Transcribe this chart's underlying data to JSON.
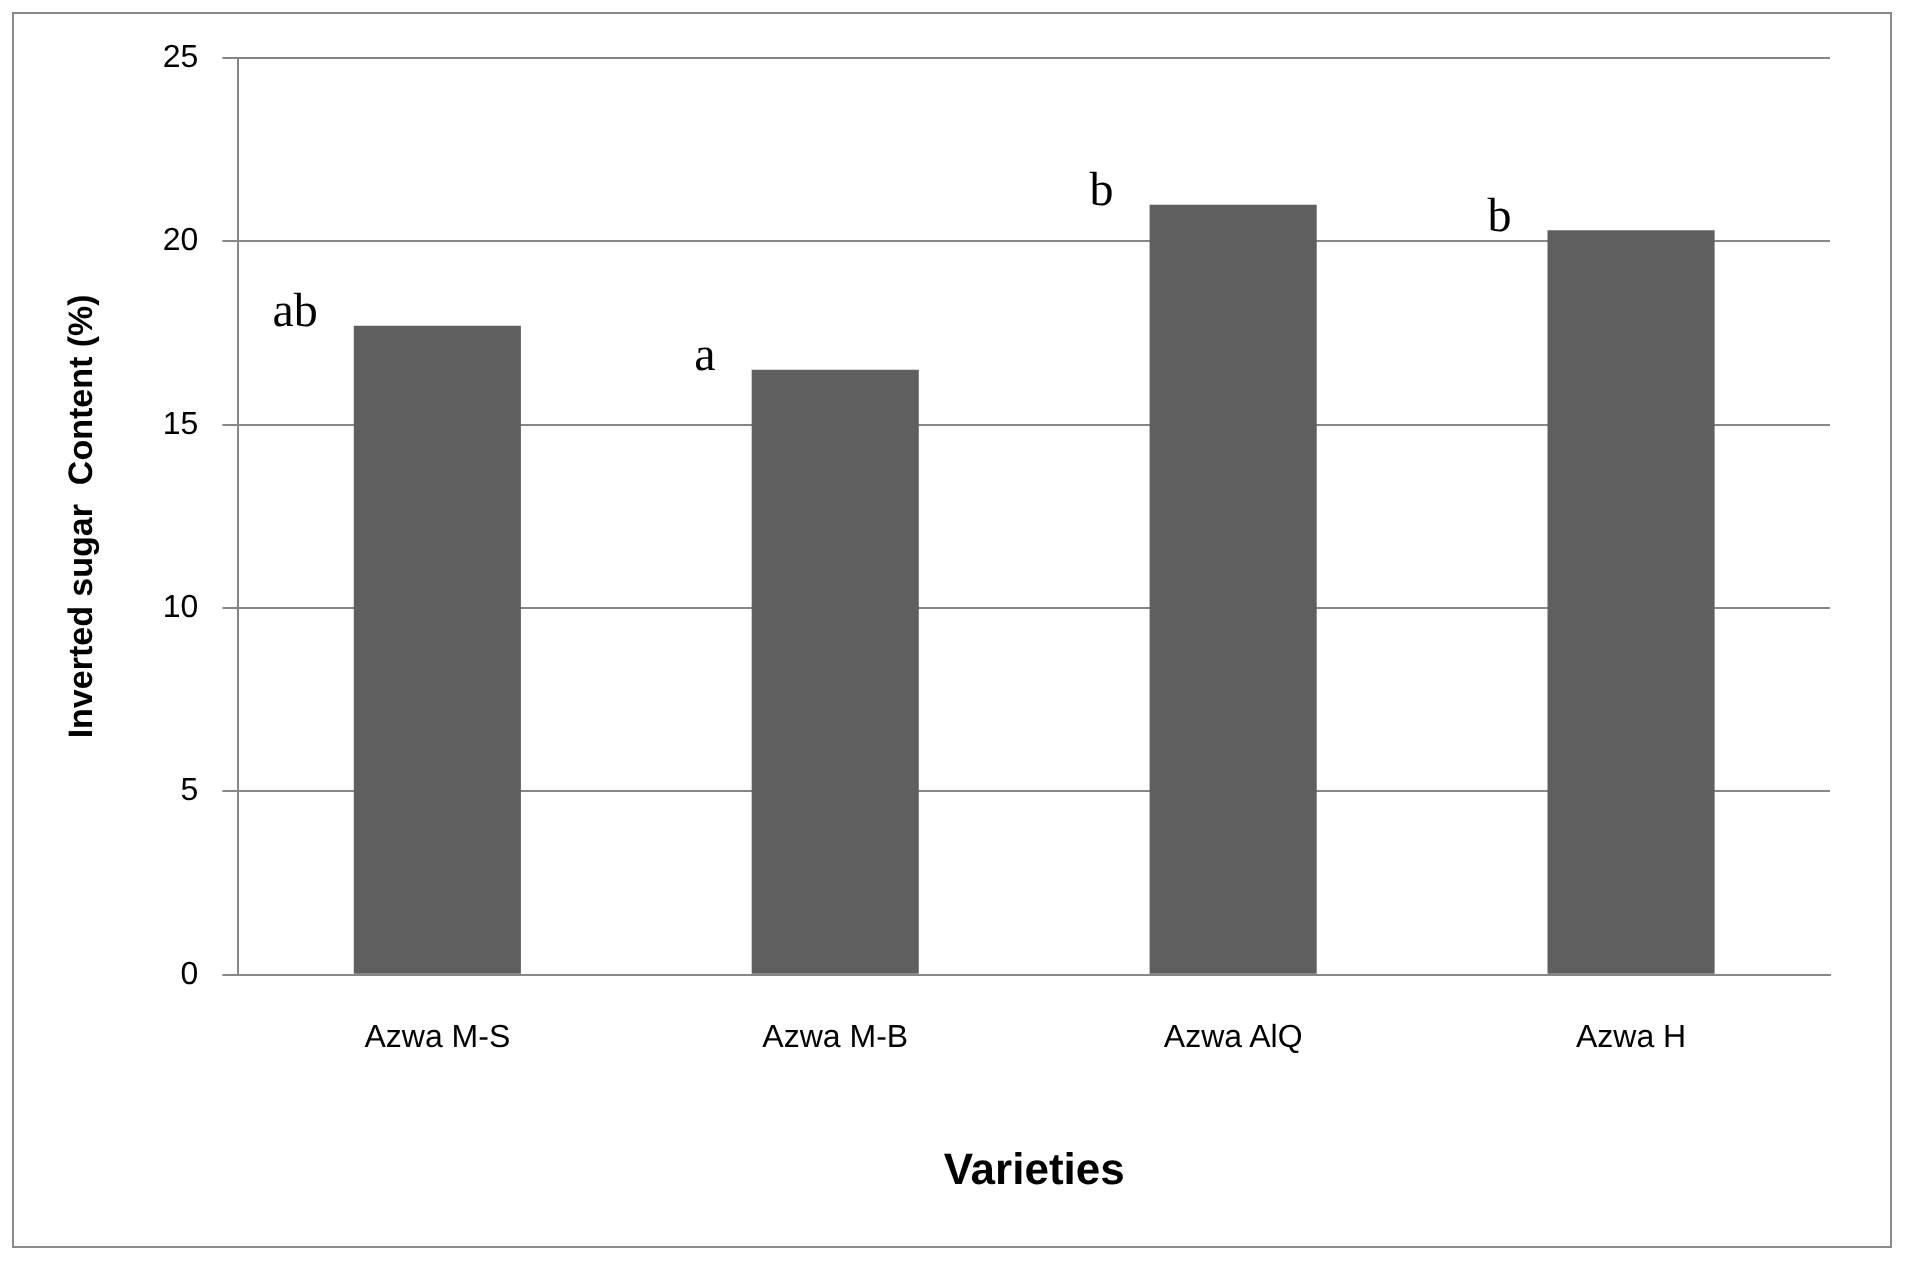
{
  "chart_data": {
    "type": "bar",
    "xlabel": "Varieties",
    "ylabel": "Inverted sugar  Content (%)",
    "categories": [
      "Azwa M-S",
      "Azwa M-B",
      "Azwa AlQ",
      "Azwa H"
    ],
    "values": [
      17.7,
      16.5,
      21,
      20.3
    ],
    "color": "#5f5f5f",
    "ylim": [
      0,
      25
    ],
    "yticks": [
      0,
      5,
      10,
      15,
      20,
      25
    ],
    "grid": "y",
    "legend": false,
    "annotations": [
      {
        "text": "ab",
        "x": "Azwa M-S",
        "y": 17.7
      },
      {
        "text": "a",
        "x": "Azwa M-B",
        "y": 16.5
      },
      {
        "text": "b",
        "x": "Azwa AlQ",
        "y": 21
      },
      {
        "text": "b",
        "x": "Azwa H",
        "y": 20.3
      }
    ]
  }
}
